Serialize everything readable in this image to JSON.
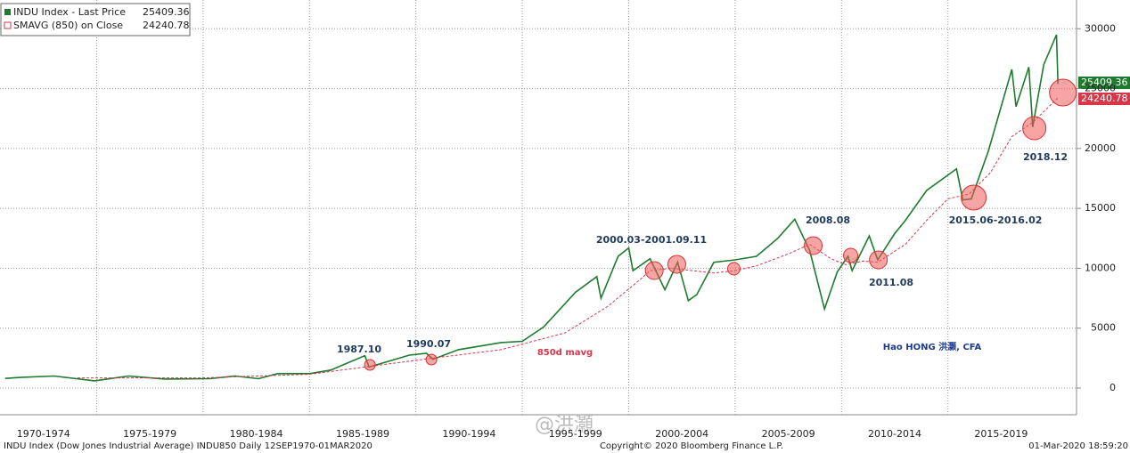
{
  "chart_data": {
    "type": "line",
    "series": [
      {
        "name": "INDU Index - Last Price",
        "color": "#1e7b2e",
        "x": [
          1970.7,
          1971.5,
          1973.0,
          1974.9,
          1976.5,
          1978.2,
          1980.3,
          1981.5,
          1982.6,
          1983.5,
          1985.0,
          1986.0,
          1987.6,
          1987.8,
          1989.7,
          1990.5,
          1990.8,
          1992.0,
          1994.0,
          1995.0,
          1996.0,
          1997.5,
          1998.5,
          1998.7,
          1999.5,
          2000.0,
          2000.2,
          2001.0,
          2001.7,
          2002.3,
          2002.8,
          2003.2,
          2004.0,
          2005.0,
          2006.0,
          2007.0,
          2007.8,
          2008.5,
          2009.2,
          2009.8,
          2010.3,
          2010.5,
          2011.3,
          2011.7,
          2012.5,
          2013.0,
          2014.0,
          2015.4,
          2015.7,
          2016.1,
          2016.9,
          2018.0,
          2018.2,
          2018.8,
          2018.98,
          2019.5,
          2020.1,
          2020.17
        ],
        "values": [
          800,
          900,
          1000,
          600,
          1000,
          750,
          780,
          1000,
          780,
          1200,
          1200,
          1500,
          2700,
          1750,
          2750,
          2900,
          2400,
          3200,
          3800,
          3900,
          5100,
          8000,
          9300,
          7500,
          11000,
          11700,
          9800,
          10800,
          8200,
          10500,
          7300,
          7800,
          10500,
          10700,
          11000,
          12500,
          14100,
          11500,
          6600,
          9700,
          11000,
          9800,
          12700,
          10700,
          12900,
          14000,
          16500,
          18300,
          15700,
          15800,
          19800,
          26600,
          23500,
          26800,
          21800,
          27000,
          29500,
          25409.36
        ]
      },
      {
        "name": "SMAVG (850)  on Close",
        "color": "#d8374a",
        "x": [
          1974.1,
          1980.0,
          1985.0,
          1987.8,
          1990.6,
          1994.0,
          1997.0,
          1999.0,
          2000.5,
          2001.0,
          2002.0,
          2004.0,
          2005.0,
          2006.0,
          2007.5,
          2008.5,
          2009.5,
          2010.2,
          2011.0,
          2011.7,
          2013.0,
          2014.0,
          2015.0,
          2016.0,
          2017.0,
          2018.0,
          2019.0,
          2020.17
        ],
        "values": [
          850,
          850,
          1150,
          1800,
          2450,
          3200,
          4600,
          6800,
          9000,
          9800,
          10000,
          9600,
          9800,
          10200,
          11200,
          12000,
          10800,
          10300,
          10600,
          10500,
          12000,
          14000,
          15800,
          16200,
          18000,
          21000,
          22200,
          24240.78
        ]
      }
    ],
    "highlights": [
      {
        "x": 1987.84,
        "y": 1932
      },
      {
        "x": 1990.73,
        "y": 2378
      },
      {
        "x": 2001.2,
        "y": 9809
      },
      {
        "x": 2002.26,
        "y": 10330
      },
      {
        "x": 2004.94,
        "y": 9958
      },
      {
        "x": 2008.67,
        "y": 11890
      },
      {
        "x": 2010.43,
        "y": 11073
      },
      {
        "x": 2011.73,
        "y": 10701
      },
      {
        "x": 2016.21,
        "y": 15903
      },
      {
        "x": 2019.06,
        "y": 21700
      },
      {
        "x": 2020.4,
        "y": 24673
      }
    ],
    "annotations": [
      "1987.10",
      "1990.07",
      "2000.03-2001.09.11",
      "2008.08",
      "2011.08",
      "2015.06-2016.02",
      "2018.12",
      "850d mavg",
      "Hao HONG 洪灝, CFA"
    ],
    "xlim": [
      1970.5,
      2021
    ],
    "ylim": [
      -2230,
      32400
    ],
    "xticks": [
      {
        "value": 1970,
        "label": "1970-1974"
      },
      {
        "value": 1975,
        "label": "1975-1979"
      },
      {
        "value": 1980,
        "label": "1980-1984"
      },
      {
        "value": 1985,
        "label": "1985-1989"
      },
      {
        "value": 1990,
        "label": "1990-1994"
      },
      {
        "value": 1995,
        "label": "1995-1999"
      },
      {
        "value": 2000,
        "label": "2000-2004"
      },
      {
        "value": 2005,
        "label": "2005-2009"
      },
      {
        "value": 2010,
        "label": "2010-2014"
      },
      {
        "value": 2015,
        "label": "2015-2019"
      }
    ],
    "yticks": [
      0,
      5000,
      10000,
      15000,
      20000,
      25000,
      30000
    ],
    "grid": true,
    "footer": {
      "left": "INDU Index (Dow Jones Industrial Average) INDU850  Daily 12SEP1970-01MAR2020",
      "center": "Copyright© 2020 Bloomberg Finance L.P.",
      "right": "01-Mar-2020 18:59:20",
      "watermark": "@洪灝"
    }
  }
}
